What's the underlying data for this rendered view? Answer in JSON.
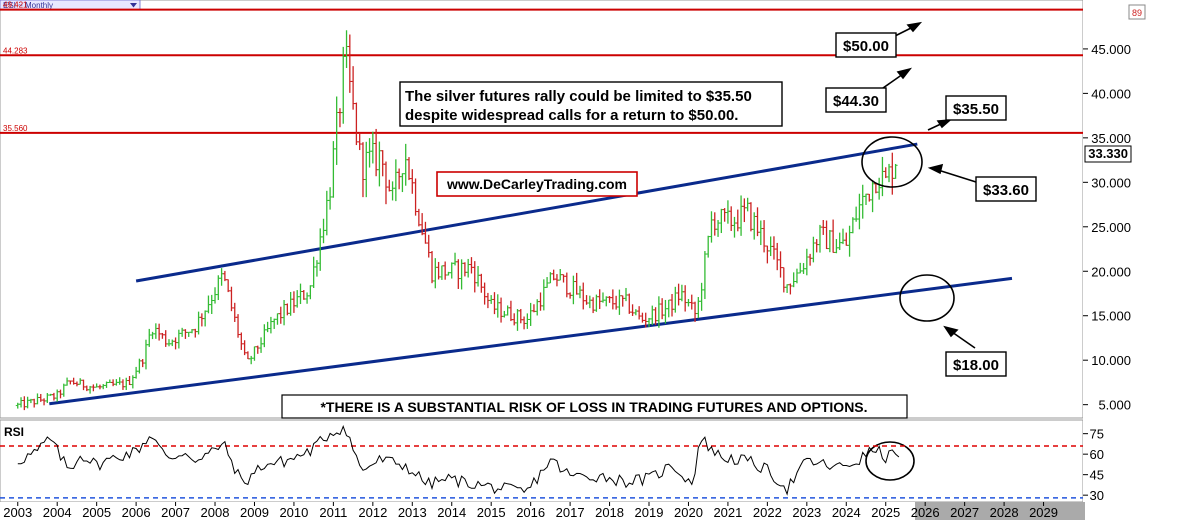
{
  "header": {
    "symbol_label": "ESI ~ Monthly",
    "top_right_badge": "89"
  },
  "colors": {
    "resistance": "#cc0000",
    "trendline": "#0a2a8c",
    "up_bar": "#33bb33",
    "down_bar": "#cc2222",
    "rsi_line": "#000000",
    "rsi_upper": "#dd0000",
    "rsi_lower": "#2255dd"
  },
  "annotations": {
    "headline_line1": "The silver futures rally could be limited to $35.50",
    "headline_line2": "despite widespread calls for a return to $50.00.",
    "website": "www.DeCarleyTrading.com",
    "disclaimer": "*THERE IS A SUBSTANTIAL RISK OF LOSS IN TRADING FUTURES AND OPTIONS.",
    "label_50": "$50.00",
    "label_44": "$44.30",
    "label_35": "$35.50",
    "label_33": "$33.60",
    "label_18": "$18.00"
  },
  "chart_data": {
    "type": "candlestick",
    "price_panel": {
      "y_ticks": [
        "5.000",
        "10.000",
        "15.000",
        "20.000",
        "25.000",
        "30.000",
        "35.000",
        "40.000",
        "45.000"
      ],
      "y_tick_values": [
        5,
        10,
        15,
        20,
        25,
        30,
        35,
        40,
        45
      ],
      "ylim": [
        3.5,
        50.5
      ],
      "last_price_label": "33.330",
      "last_price": 33.33,
      "resistance_levels": [
        {
          "value": 49.421,
          "label": "49.421"
        },
        {
          "value": 44.283,
          "label": "44.283"
        },
        {
          "value": 35.56,
          "label": "35.560"
        }
      ],
      "trendlines": [
        {
          "from": [
            2006.0,
            18.9
          ],
          "to": [
            2025.8,
            34.3
          ]
        },
        {
          "from": [
            2003.8,
            5.1
          ],
          "to": [
            2028.2,
            19.2
          ]
        }
      ],
      "anchors": [
        [
          2003.0,
          4.9
        ],
        [
          2004.0,
          6.0
        ],
        [
          2004.3,
          7.6
        ],
        [
          2005.0,
          6.9
        ],
        [
          2005.8,
          7.4
        ],
        [
          2006.2,
          10.5
        ],
        [
          2006.4,
          13.8
        ],
        [
          2006.8,
          12.0
        ],
        [
          2007.5,
          13.8
        ],
        [
          2008.2,
          19.5
        ],
        [
          2008.8,
          9.5
        ],
        [
          2009.5,
          14.5
        ],
        [
          2010.4,
          18.0
        ],
        [
          2010.9,
          29.0
        ],
        [
          2011.3,
          44.0
        ],
        [
          2011.7,
          32.0
        ],
        [
          2012.2,
          33.0
        ],
        [
          2012.5,
          28.0
        ],
        [
          2012.8,
          33.5
        ],
        [
          2013.5,
          20.0
        ],
        [
          2014.0,
          20.0
        ],
        [
          2014.5,
          20.5
        ],
        [
          2015.0,
          16.0
        ],
        [
          2015.9,
          14.5
        ],
        [
          2016.6,
          19.5
        ],
        [
          2017.5,
          16.5
        ],
        [
          2018.4,
          16.5
        ],
        [
          2018.8,
          14.5
        ],
        [
          2019.5,
          16.0
        ],
        [
          2019.8,
          17.5
        ],
        [
          2020.2,
          15.0
        ],
        [
          2020.6,
          26.0
        ],
        [
          2021.0,
          25.5
        ],
        [
          2021.5,
          26.5
        ],
        [
          2022.0,
          23.0
        ],
        [
          2022.5,
          18.5
        ],
        [
          2022.8,
          20.0
        ],
        [
          2023.3,
          24.0
        ],
        [
          2023.8,
          23.0
        ],
        [
          2024.0,
          23.0
        ],
        [
          2024.3,
          27.0
        ],
        [
          2024.8,
          31.0
        ],
        [
          2025.0,
          30.0
        ],
        [
          2025.3,
          33.3
        ]
      ]
    },
    "rsi_panel": {
      "label": "RSI",
      "y_ticks": [
        "30",
        "45",
        "60",
        "75"
      ],
      "y_tick_values": [
        30,
        45,
        60,
        75
      ],
      "ylim": [
        25,
        85
      ],
      "upper_level": 66,
      "lower_level": 28,
      "anchors": [
        [
          2003.0,
          55
        ],
        [
          2003.5,
          62
        ],
        [
          2003.8,
          72
        ],
        [
          2004.3,
          48
        ],
        [
          2004.6,
          60
        ],
        [
          2005.0,
          52
        ],
        [
          2005.5,
          58
        ],
        [
          2006.0,
          62
        ],
        [
          2006.4,
          75
        ],
        [
          2006.8,
          55
        ],
        [
          2007.2,
          62
        ],
        [
          2007.6,
          55
        ],
        [
          2008.2,
          68
        ],
        [
          2008.7,
          38
        ],
        [
          2009.2,
          52
        ],
        [
          2009.8,
          55
        ],
        [
          2010.4,
          62
        ],
        [
          2010.9,
          75
        ],
        [
          2011.3,
          80
        ],
        [
          2011.7,
          48
        ],
        [
          2012.2,
          56
        ],
        [
          2012.8,
          52
        ],
        [
          2013.4,
          38
        ],
        [
          2013.9,
          42
        ],
        [
          2014.6,
          38
        ],
        [
          2015.2,
          35
        ],
        [
          2015.9,
          32
        ],
        [
          2016.5,
          56
        ],
        [
          2017.0,
          44
        ],
        [
          2017.8,
          44
        ],
        [
          2018.4,
          40
        ],
        [
          2019.0,
          42
        ],
        [
          2019.6,
          52
        ],
        [
          2020.1,
          38
        ],
        [
          2020.3,
          72
        ],
        [
          2020.8,
          58
        ],
        [
          2021.5,
          55
        ],
        [
          2022.0,
          48
        ],
        [
          2022.5,
          35
        ],
        [
          2023.0,
          55
        ],
        [
          2023.8,
          50
        ],
        [
          2024.3,
          55
        ],
        [
          2024.7,
          64
        ],
        [
          2025.0,
          58
        ],
        [
          2025.4,
          62
        ]
      ]
    },
    "x_ticks": [
      "2003",
      "2004",
      "2005",
      "2006",
      "2007",
      "2008",
      "2009",
      "2010",
      "2011",
      "2012",
      "2013",
      "2014",
      "2015",
      "2016",
      "2017",
      "2018",
      "2019",
      "2020",
      "2021",
      "2022",
      "2023",
      "2024",
      "2025",
      "2026",
      "2027",
      "2028",
      "2029"
    ],
    "x_tick_values": [
      2003,
      2004,
      2005,
      2006,
      2007,
      2008,
      2009,
      2010,
      2011,
      2012,
      2013,
      2014,
      2015,
      2016,
      2017,
      2018,
      2019,
      2020,
      2021,
      2022,
      2023,
      2024,
      2025,
      2026,
      2027,
      2028,
      2029
    ],
    "xlim": [
      2002.55,
      2030.0
    ]
  }
}
